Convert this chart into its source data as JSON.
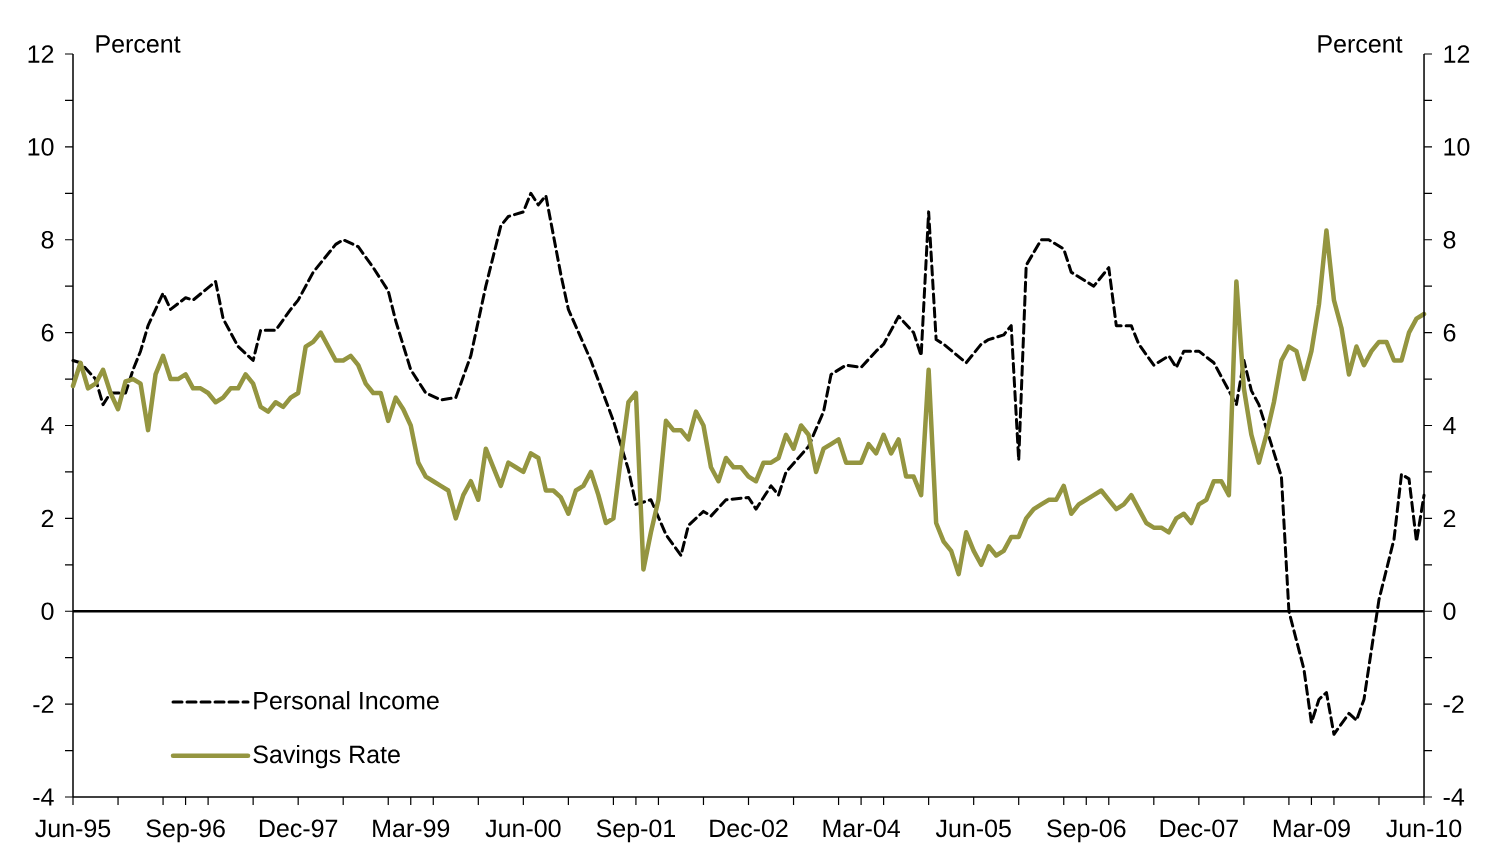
{
  "chart_data": {
    "type": "line",
    "ylabel": "Percent",
    "y2label": "Percent",
    "xlim": [
      "1995-06",
      "2010-06"
    ],
    "xticks": [
      {
        "value": "1995-06",
        "label": "Jun-95"
      },
      {
        "value": "1995-12",
        "label": null
      },
      {
        "value": "1996-06",
        "label": null
      },
      {
        "value": "1996-09",
        "label": "Sep-96"
      },
      {
        "value": "1996-12",
        "label": null
      },
      {
        "value": "1997-06",
        "label": null
      },
      {
        "value": "1997-12",
        "label": "Dec-97"
      },
      {
        "value": "1998-06",
        "label": null
      },
      {
        "value": "1998-12",
        "label": null
      },
      {
        "value": "1999-03",
        "label": "Mar-99"
      },
      {
        "value": "1999-06",
        "label": null
      },
      {
        "value": "1999-12",
        "label": null
      },
      {
        "value": "2000-06",
        "label": "Jun-00"
      },
      {
        "value": "2000-12",
        "label": null
      },
      {
        "value": "2001-06",
        "label": null
      },
      {
        "value": "2001-09",
        "label": "Sep-01"
      },
      {
        "value": "2001-12",
        "label": null
      },
      {
        "value": "2002-06",
        "label": null
      },
      {
        "value": "2002-12",
        "label": "Dec-02"
      },
      {
        "value": "2003-06",
        "label": null
      },
      {
        "value": "2003-12",
        "label": null
      },
      {
        "value": "2004-03",
        "label": "Mar-04"
      },
      {
        "value": "2004-06",
        "label": null
      },
      {
        "value": "2004-12",
        "label": null
      },
      {
        "value": "2005-06",
        "label": "Jun-05"
      },
      {
        "value": "2005-12",
        "label": null
      },
      {
        "value": "2006-06",
        "label": null
      },
      {
        "value": "2006-09",
        "label": "Sep-06"
      },
      {
        "value": "2006-12",
        "label": null
      },
      {
        "value": "2007-06",
        "label": null
      },
      {
        "value": "2007-12",
        "label": "Dec-07"
      },
      {
        "value": "2008-06",
        "label": null
      },
      {
        "value": "2008-12",
        "label": null
      },
      {
        "value": "2009-03",
        "label": "Mar-09"
      },
      {
        "value": "2009-06",
        "label": null
      },
      {
        "value": "2009-12",
        "label": null
      },
      {
        "value": "2010-06",
        "label": "Jun-10"
      }
    ],
    "ylim": [
      -4,
      12
    ],
    "yticks": [
      -4,
      {
        "value": -3,
        "label": null
      },
      -2,
      {
        "value": -1,
        "label": null
      },
      0,
      {
        "value": 1,
        "label": null
      },
      2,
      {
        "value": 3,
        "label": null
      },
      4,
      {
        "value": 5,
        "label": null
      },
      6,
      {
        "value": 7,
        "label": null
      },
      8,
      {
        "value": 9,
        "label": null
      },
      10,
      {
        "value": 11,
        "label": null
      },
      12
    ],
    "y2lim": [
      -4,
      12
    ],
    "y2ticks": [
      -4,
      {
        "value": -3,
        "label": null
      },
      -2,
      {
        "value": -1,
        "label": null
      },
      0,
      {
        "value": 1,
        "label": null
      },
      2,
      {
        "value": 3,
        "label": null
      },
      4,
      {
        "value": 5,
        "label": null
      },
      6,
      {
        "value": 7,
        "label": null
      },
      8,
      {
        "value": 9,
        "label": null
      },
      10,
      {
        "value": 11,
        "label": null
      },
      12
    ],
    "ref_lines": [
      {
        "axis": "y",
        "value": 0,
        "color": "#000000"
      }
    ],
    "grid": false,
    "legend": "bottom left",
    "marker": "none",
    "series": [
      {
        "name": "Personal Income",
        "color": "#000000",
        "line_style": "dashed",
        "x": [
          "1995-06",
          "1995-07",
          "1995-09",
          "1995-10",
          "1995-11",
          "1996-01",
          "1996-02",
          "1996-03",
          "1996-04",
          "1996-06",
          "1996-07",
          "1996-09",
          "1996-10",
          "1997-01",
          "1997-02",
          "1997-04",
          "1997-06",
          "1997-07",
          "1997-09",
          "1997-11",
          "1997-12",
          "1998-02",
          "1998-05",
          "1998-06",
          "1998-08",
          "1998-10",
          "1998-12",
          "1999-01",
          "1999-03",
          "1999-05",
          "1999-07",
          "1999-09",
          "1999-11",
          "2000-01",
          "2000-03",
          "2000-04",
          "2000-06",
          "2000-07",
          "2000-08",
          "2000-09",
          "2000-11",
          "2000-12",
          "2001-03",
          "2001-06",
          "2001-08",
          "2001-09",
          "2001-11",
          "2002-01",
          "2002-03",
          "2002-04",
          "2002-06",
          "2002-07",
          "2002-09",
          "2002-12",
          "2003-01",
          "2003-03",
          "2003-04",
          "2003-05",
          "2003-08",
          "2003-10",
          "2003-11",
          "2004-01",
          "2004-03",
          "2004-05",
          "2004-06",
          "2004-08",
          "2004-10",
          "2004-11",
          "2004-12",
          "2005-01",
          "2005-02",
          "2005-05",
          "2005-07",
          "2005-08",
          "2005-10",
          "2005-11",
          "2005-12",
          "2006-01",
          "2006-03",
          "2006-04",
          "2006-06",
          "2006-07",
          "2006-10",
          "2006-12",
          "2007-01",
          "2007-03",
          "2007-04",
          "2007-06",
          "2007-08",
          "2007-09",
          "2007-10",
          "2007-12",
          "2008-02",
          "2008-04",
          "2008-05",
          "2008-06",
          "2008-07",
          "2008-08",
          "2008-11",
          "2008-12",
          "2009-02",
          "2009-03",
          "2009-04",
          "2009-05",
          "2009-06",
          "2009-08",
          "2009-09",
          "2009-10",
          "2009-12",
          "2010-02",
          "2010-03",
          "2010-04",
          "2010-05",
          "2010-06"
        ],
        "values": [
          5.4,
          5.35,
          5.0,
          4.45,
          4.7,
          4.7,
          5.2,
          5.6,
          6.15,
          6.85,
          6.5,
          6.75,
          6.7,
          7.1,
          6.3,
          5.7,
          5.4,
          6.05,
          6.05,
          6.5,
          6.7,
          7.3,
          7.9,
          8.0,
          7.85,
          7.4,
          6.9,
          6.25,
          5.2,
          4.7,
          4.55,
          4.6,
          5.5,
          7.0,
          8.3,
          8.5,
          8.6,
          9.0,
          8.75,
          8.95,
          7.25,
          6.5,
          5.4,
          4.1,
          3.05,
          2.3,
          2.4,
          1.65,
          1.2,
          1.85,
          2.15,
          2.05,
          2.4,
          2.45,
          2.2,
          2.7,
          2.5,
          3.0,
          3.55,
          4.3,
          5.1,
          5.3,
          5.25,
          5.6,
          5.75,
          6.35,
          6.0,
          5.5,
          8.6,
          5.85,
          5.75,
          5.35,
          5.75,
          5.85,
          5.95,
          6.15,
          3.25,
          7.45,
          8.0,
          8.0,
          7.8,
          7.3,
          7.0,
          7.4,
          6.15,
          6.15,
          5.75,
          5.3,
          5.5,
          5.25,
          5.6,
          5.6,
          5.35,
          4.75,
          4.45,
          5.4,
          4.75,
          4.45,
          2.9,
          0.0,
          -1.25,
          -2.4,
          -1.9,
          -1.75,
          -2.65,
          -2.2,
          -2.35,
          -1.9,
          0.25,
          1.55,
          2.95,
          2.85,
          1.5,
          2.5
        ]
      },
      {
        "name": "Savings Rate",
        "color": "#949540",
        "line_style": "solid",
        "x": [
          "1995-06",
          "1995-07",
          "1995-08",
          "1995-09",
          "1995-10",
          "1995-11",
          "1995-12",
          "1996-01",
          "1996-02",
          "1996-03",
          "1996-04",
          "1996-05",
          "1996-06",
          "1996-07",
          "1996-08",
          "1996-09",
          "1996-10",
          "1996-11",
          "1996-12",
          "1997-01",
          "1997-02",
          "1997-03",
          "1997-04",
          "1997-05",
          "1997-06",
          "1997-07",
          "1997-08",
          "1997-09",
          "1997-10",
          "1997-11",
          "1997-12",
          "1998-01",
          "1998-02",
          "1998-03",
          "1998-04",
          "1998-05",
          "1998-06",
          "1998-07",
          "1998-08",
          "1998-09",
          "1998-10",
          "1998-11",
          "1998-12",
          "1999-01",
          "1999-02",
          "1999-03",
          "1999-04",
          "1999-05",
          "1999-06",
          "1999-07",
          "1999-08",
          "1999-09",
          "1999-10",
          "1999-11",
          "1999-12",
          "2000-01",
          "2000-02",
          "2000-03",
          "2000-04",
          "2000-05",
          "2000-06",
          "2000-07",
          "2000-08",
          "2000-09",
          "2000-10",
          "2000-11",
          "2000-12",
          "2001-01",
          "2001-02",
          "2001-03",
          "2001-04",
          "2001-05",
          "2001-06",
          "2001-07",
          "2001-08",
          "2001-09",
          "2001-10",
          "2001-11",
          "2001-12",
          "2002-01",
          "2002-02",
          "2002-03",
          "2002-04",
          "2002-05",
          "2002-06",
          "2002-07",
          "2002-08",
          "2002-09",
          "2002-10",
          "2002-11",
          "2002-12",
          "2003-01",
          "2003-02",
          "2003-03",
          "2003-04",
          "2003-05",
          "2003-06",
          "2003-07",
          "2003-08",
          "2003-09",
          "2003-10",
          "2003-11",
          "2003-12",
          "2004-01",
          "2004-02",
          "2004-03",
          "2004-04",
          "2004-05",
          "2004-06",
          "2004-07",
          "2004-08",
          "2004-09",
          "2004-10",
          "2004-11",
          "2004-12",
          "2005-01",
          "2005-02",
          "2005-03",
          "2005-04",
          "2005-05",
          "2005-06",
          "2005-07",
          "2005-08",
          "2005-09",
          "2005-10",
          "2005-11",
          "2005-12",
          "2006-01",
          "2006-02",
          "2006-03",
          "2006-04",
          "2006-05",
          "2006-06",
          "2006-07",
          "2006-08",
          "2006-09",
          "2006-10",
          "2006-11",
          "2006-12",
          "2007-01",
          "2007-02",
          "2007-03",
          "2007-04",
          "2007-05",
          "2007-06",
          "2007-07",
          "2007-08",
          "2007-09",
          "2007-10",
          "2007-11",
          "2007-12",
          "2008-01",
          "2008-02",
          "2008-03",
          "2008-04",
          "2008-05",
          "2008-06",
          "2008-07",
          "2008-08",
          "2008-09",
          "2008-10",
          "2008-11",
          "2008-12",
          "2009-01",
          "2009-02",
          "2009-03",
          "2009-04",
          "2009-05",
          "2009-06",
          "2009-07",
          "2009-08",
          "2009-09",
          "2009-10",
          "2009-11",
          "2009-12",
          "2010-01",
          "2010-02",
          "2010-03",
          "2010-04",
          "2010-05",
          "2010-06"
        ],
        "values": [
          4.85,
          5.35,
          4.8,
          4.9,
          5.2,
          4.7,
          4.35,
          4.95,
          5.0,
          4.9,
          3.9,
          5.1,
          5.5,
          5.0,
          5.0,
          5.1,
          4.8,
          4.8,
          4.7,
          4.5,
          4.6,
          4.8,
          4.8,
          5.1,
          4.9,
          4.4,
          4.3,
          4.5,
          4.4,
          4.6,
          4.7,
          5.7,
          5.8,
          6.0,
          5.7,
          5.4,
          5.4,
          5.5,
          5.3,
          4.9,
          4.7,
          4.7,
          4.1,
          4.6,
          4.35,
          4.0,
          3.2,
          2.9,
          2.8,
          2.7,
          2.6,
          2.0,
          2.5,
          2.8,
          2.4,
          3.5,
          3.1,
          2.7,
          3.2,
          3.1,
          3.0,
          3.4,
          3.3,
          2.6,
          2.6,
          2.45,
          2.1,
          2.6,
          2.7,
          3.0,
          2.5,
          1.9,
          2.0,
          3.3,
          4.5,
          4.7,
          0.9,
          1.7,
          2.4,
          4.1,
          3.9,
          3.9,
          3.7,
          4.3,
          4.0,
          3.1,
          2.8,
          3.3,
          3.1,
          3.1,
          2.9,
          2.8,
          3.2,
          3.2,
          3.3,
          3.8,
          3.5,
          4.0,
          3.8,
          3.0,
          3.5,
          3.6,
          3.7,
          3.2,
          3.2,
          3.2,
          3.6,
          3.4,
          3.8,
          3.4,
          3.7,
          2.9,
          2.9,
          2.5,
          5.2,
          1.9,
          1.5,
          1.3,
          0.8,
          1.7,
          1.3,
          1.0,
          1.4,
          1.2,
          1.3,
          1.6,
          1.6,
          2.0,
          2.2,
          2.3,
          2.4,
          2.4,
          2.7,
          2.1,
          2.3,
          2.4,
          2.5,
          2.6,
          2.4,
          2.2,
          2.3,
          2.5,
          2.2,
          1.9,
          1.8,
          1.8,
          1.7,
          2.0,
          2.1,
          1.9,
          2.3,
          2.4,
          2.8,
          2.8,
          2.5,
          7.1,
          4.8,
          3.8,
          3.2,
          3.8,
          4.5,
          5.4,
          5.7,
          5.6,
          5.0,
          5.6,
          6.6,
          8.2,
          6.7,
          6.1,
          5.1,
          5.7,
          5.3,
          5.6,
          5.8,
          5.8,
          5.4,
          5.4,
          6.0,
          6.3,
          6.4
        ]
      }
    ]
  }
}
